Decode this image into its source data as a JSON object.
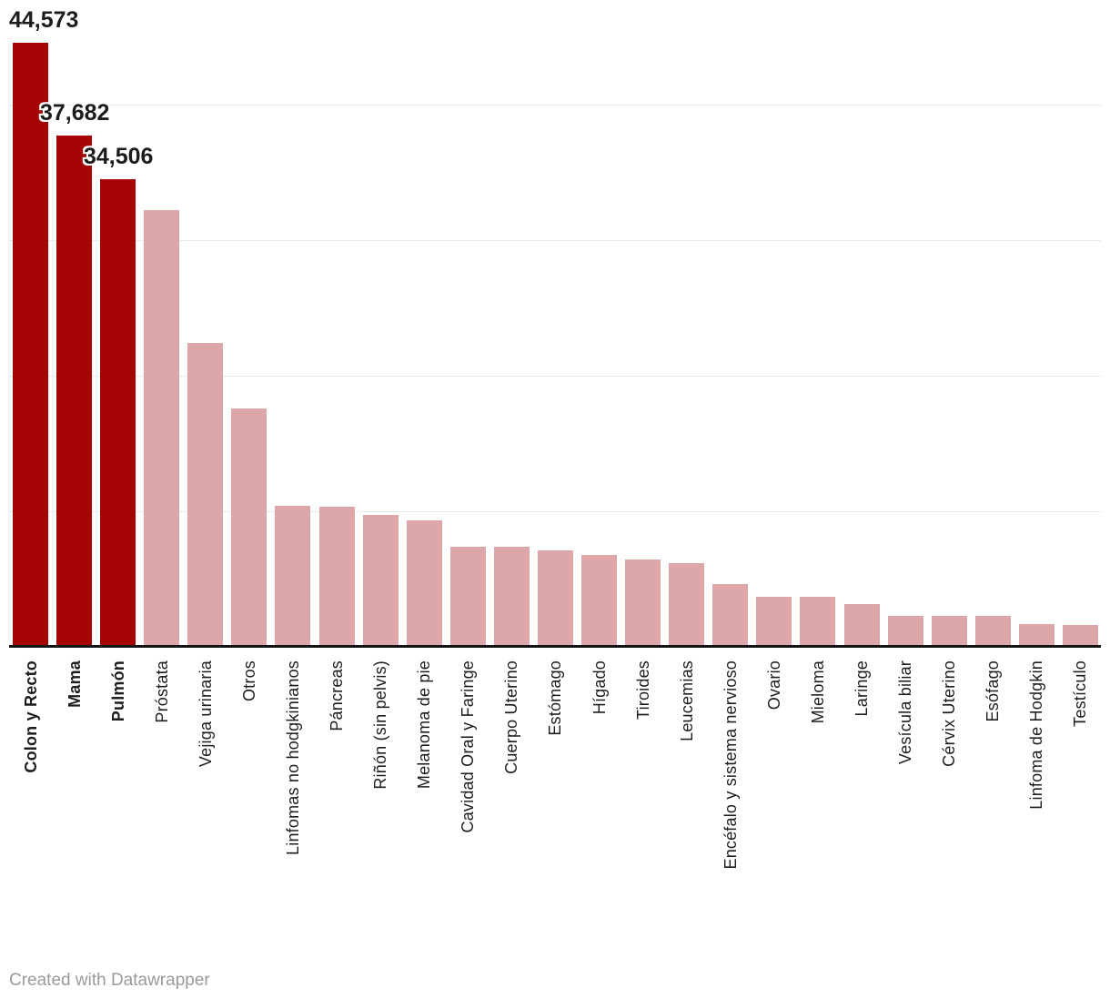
{
  "chart_data": {
    "type": "bar",
    "title": "",
    "xlabel": "",
    "ylabel": "",
    "ylim": [
      0,
      47000
    ],
    "gridline_values": [
      10000,
      20000,
      30000,
      40000
    ],
    "gridlines_visible": true,
    "y_axis_tick_labels_visible": false,
    "legend": "none",
    "categories": [
      "Colon y Recto",
      "Mama",
      "Pulmón",
      "Próstata",
      "Vejiga urinaria",
      "Otros",
      "Linfomas no hodgkinianos",
      "Páncreas",
      "Riñón (sin pelvis)",
      "Melanoma de pie",
      "Cavidad Oral y Faringe",
      "Cuerpo Uterino",
      "Estómago",
      "Hígado",
      "Tiroides",
      "Leucemias",
      "Encéfalo y sistema nervioso",
      "Ovario",
      "Mieloma",
      "Laringe",
      "Vesícula biliar",
      "Cérvix Uterino",
      "Esófago",
      "Linfoma de Hodgkin",
      "Testículo"
    ],
    "values": [
      44573,
      37682,
      34506,
      32200,
      22400,
      17600,
      10400,
      10300,
      9700,
      9350,
      7400,
      7400,
      7100,
      6800,
      6450,
      6200,
      4600,
      3700,
      3700,
      3170,
      2300,
      2250,
      2280,
      1700,
      1630
    ],
    "labeled_values_exact": [
      44573,
      37682,
      34506
    ],
    "data_labels": [
      "44,573",
      "37,682",
      "34,506"
    ],
    "highlighted_categories": [
      "Colon y Recto",
      "Mama",
      "Pulmón"
    ],
    "colors": {
      "bar_highlight": "#a50304",
      "bar_default": "#dda7a9",
      "gridline": "#e9e9e9",
      "axis_line": "#141416",
      "label_text": "#1d1d1d",
      "value_label_halo": "#ffffff",
      "credit_text": "#9a9a9a"
    }
  },
  "footer": {
    "credit": "Created with Datawrapper"
  }
}
